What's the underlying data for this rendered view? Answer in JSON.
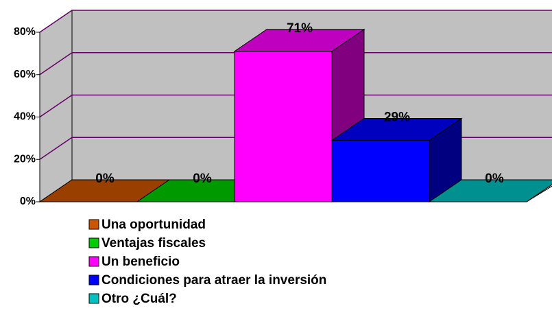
{
  "chart_data": {
    "type": "bar3d",
    "categories": [
      "Una oportunidad",
      "Ventajas fiscales",
      "Un beneficio",
      "Condiciones para atraer la inversión",
      "Otro ¿Cuál?"
    ],
    "values": [
      0,
      0,
      71,
      29,
      0
    ],
    "value_labels": [
      "0%",
      "0%",
      "71%",
      "29%",
      "0%"
    ],
    "colors": [
      "#cc5500",
      "#00cc00",
      "#ff00ff",
      "#0000ff",
      "#00c0c0"
    ],
    "ylim": [
      0,
      80
    ],
    "yticks": [
      {
        "value": 0,
        "label": "0%"
      },
      {
        "value": 20,
        "label": "20%"
      },
      {
        "value": 40,
        "label": "40%"
      },
      {
        "value": 60,
        "label": "60%"
      },
      {
        "value": 80,
        "label": "80%"
      }
    ],
    "grid": true,
    "legend": "bottom"
  }
}
